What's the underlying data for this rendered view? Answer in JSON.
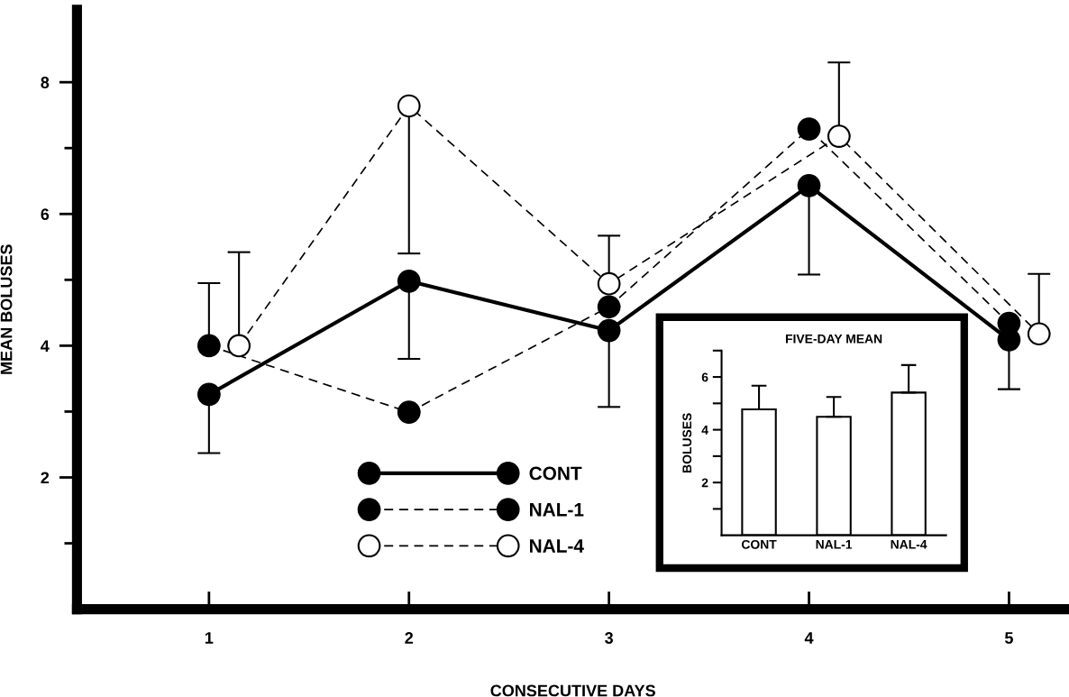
{
  "chart_data": [
    {
      "type": "line",
      "xlabel": "CONSECUTIVE DAYS",
      "ylabel": "MEAN BOLUSES",
      "x": [
        1,
        2,
        3,
        4,
        5
      ],
      "xlim": [
        0.34,
        5.3
      ],
      "xticks": [
        1,
        2,
        3,
        4,
        5
      ],
      "ylim": [
        0,
        9.1
      ],
      "yticks": [
        {
          "value": 1,
          "label": null
        },
        2,
        {
          "value": 3,
          "label": null
        },
        4,
        {
          "value": 5,
          "label": null
        },
        6,
        {
          "value": 7,
          "label": null
        },
        8
      ],
      "grid": false,
      "legend": "bottom",
      "marker": "circle",
      "series": [
        {
          "name": "CONT",
          "color": "#000000",
          "line_style": "solid",
          "values": [
            3.26,
            4.98,
            4.23,
            6.43,
            4.09
          ],
          "errors": [
            [
              2.37,
              3.26
            ],
            [
              3.8,
              4.98
            ],
            [
              3.07,
              4.23
            ],
            [
              5.08,
              6.43
            ],
            [
              3.34,
              4.09
            ]
          ]
        },
        {
          "name": "NAL-1",
          "color": "#000000",
          "line_style": "dashed",
          "values": [
            4.0,
            2.99,
            4.59,
            7.29,
            4.34
          ],
          "errors": [
            [
              4.0,
              4.95
            ],
            null,
            null,
            null,
            null
          ]
        },
        {
          "name": "NAL-4",
          "color": "#ffffff",
          "line_style": "dashed",
          "x": [
            1.15,
            2,
            3,
            4.15,
            5.15
          ],
          "values": [
            4.0,
            7.64,
            4.94,
            7.18,
            4.18
          ],
          "errors": [
            [
              4.0,
              5.42
            ],
            [
              5.4,
              7.64
            ],
            [
              4.94,
              5.67
            ],
            [
              7.18,
              8.3
            ],
            [
              4.18,
              5.09
            ]
          ]
        }
      ]
    },
    {
      "type": "bar",
      "title": "FIVE-DAY MEAN",
      "ylabel": "BOLUSES",
      "categories": [
        "CONT",
        "NAL-1",
        "NAL-4"
      ],
      "values": [
        4.77,
        4.49,
        5.41
      ],
      "errors": [
        [
          4.77,
          5.67
        ],
        [
          4.49,
          5.24
        ],
        [
          5.41,
          6.45
        ]
      ],
      "color": "#ffffff",
      "ylim": [
        0,
        7
      ],
      "yticks": [
        {
          "value": 1,
          "label": null
        },
        2,
        {
          "value": 3,
          "label": null
        },
        4,
        {
          "value": 5,
          "label": null
        },
        6,
        {
          "value": 7,
          "label": null
        }
      ],
      "grid": false
    }
  ]
}
